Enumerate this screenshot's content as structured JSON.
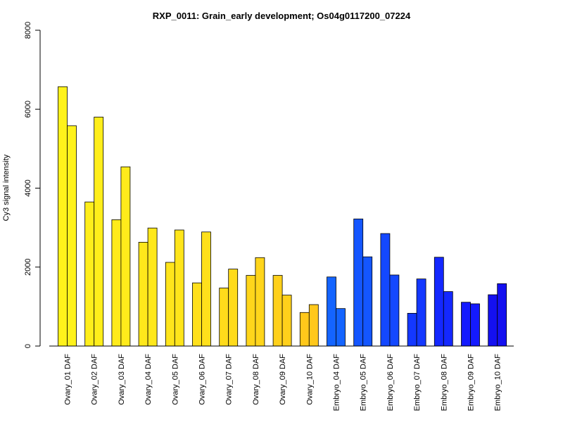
{
  "chart_data": {
    "type": "bar",
    "title": "RXP_0011: Grain_early development; Os04g0117200_07224",
    "xlabel": "",
    "ylabel": "Cy3 signal intensity",
    "ylim": [
      0,
      8000
    ],
    "yticks": [
      0,
      2000,
      4000,
      6000,
      8000
    ],
    "grid": false,
    "legend": "none",
    "categories": [
      "Ovary_01 DAF",
      "Ovary_02 DAF",
      "Ovary_03 DAF",
      "Ovary_04 DAF",
      "Ovary_05 DAF",
      "Ovary_06 DAF",
      "Ovary_07 DAF",
      "Ovary_08 DAF",
      "Ovary_09 DAF",
      "Ovary_10 DAF",
      "Embryo_04 DAF",
      "Embryo_05 DAF",
      "Embryo_06 DAF",
      "Embryo_07 DAF",
      "Embryo_08 DAF",
      "Embryo_09 DAF",
      "Embryo_10 DAF"
    ],
    "category_colors": [
      "#FFF21B",
      "#FFEE1B",
      "#FFEB1B",
      "#FFE81B",
      "#FFE51B",
      "#FFE01B",
      "#FFDB1B",
      "#FFD51B",
      "#FFD01B",
      "#FFC81B",
      "#1464FF",
      "#1456FF",
      "#1448FF",
      "#1438FF",
      "#1428FF",
      "#141AFF",
      "#1410F0"
    ],
    "series": [
      {
        "values": [
          6570,
          3650,
          3200,
          2630,
          2120,
          1600,
          1470,
          1790,
          1790,
          850,
          1750,
          3220,
          2850,
          830,
          2250,
          1110,
          1300
        ]
      },
      {
        "values": [
          5580,
          5800,
          4540,
          2990,
          2940,
          2890,
          1950,
          2240,
          1290,
          1050,
          950,
          2260,
          1800,
          1700,
          1380,
          1070,
          1580
        ]
      }
    ]
  }
}
